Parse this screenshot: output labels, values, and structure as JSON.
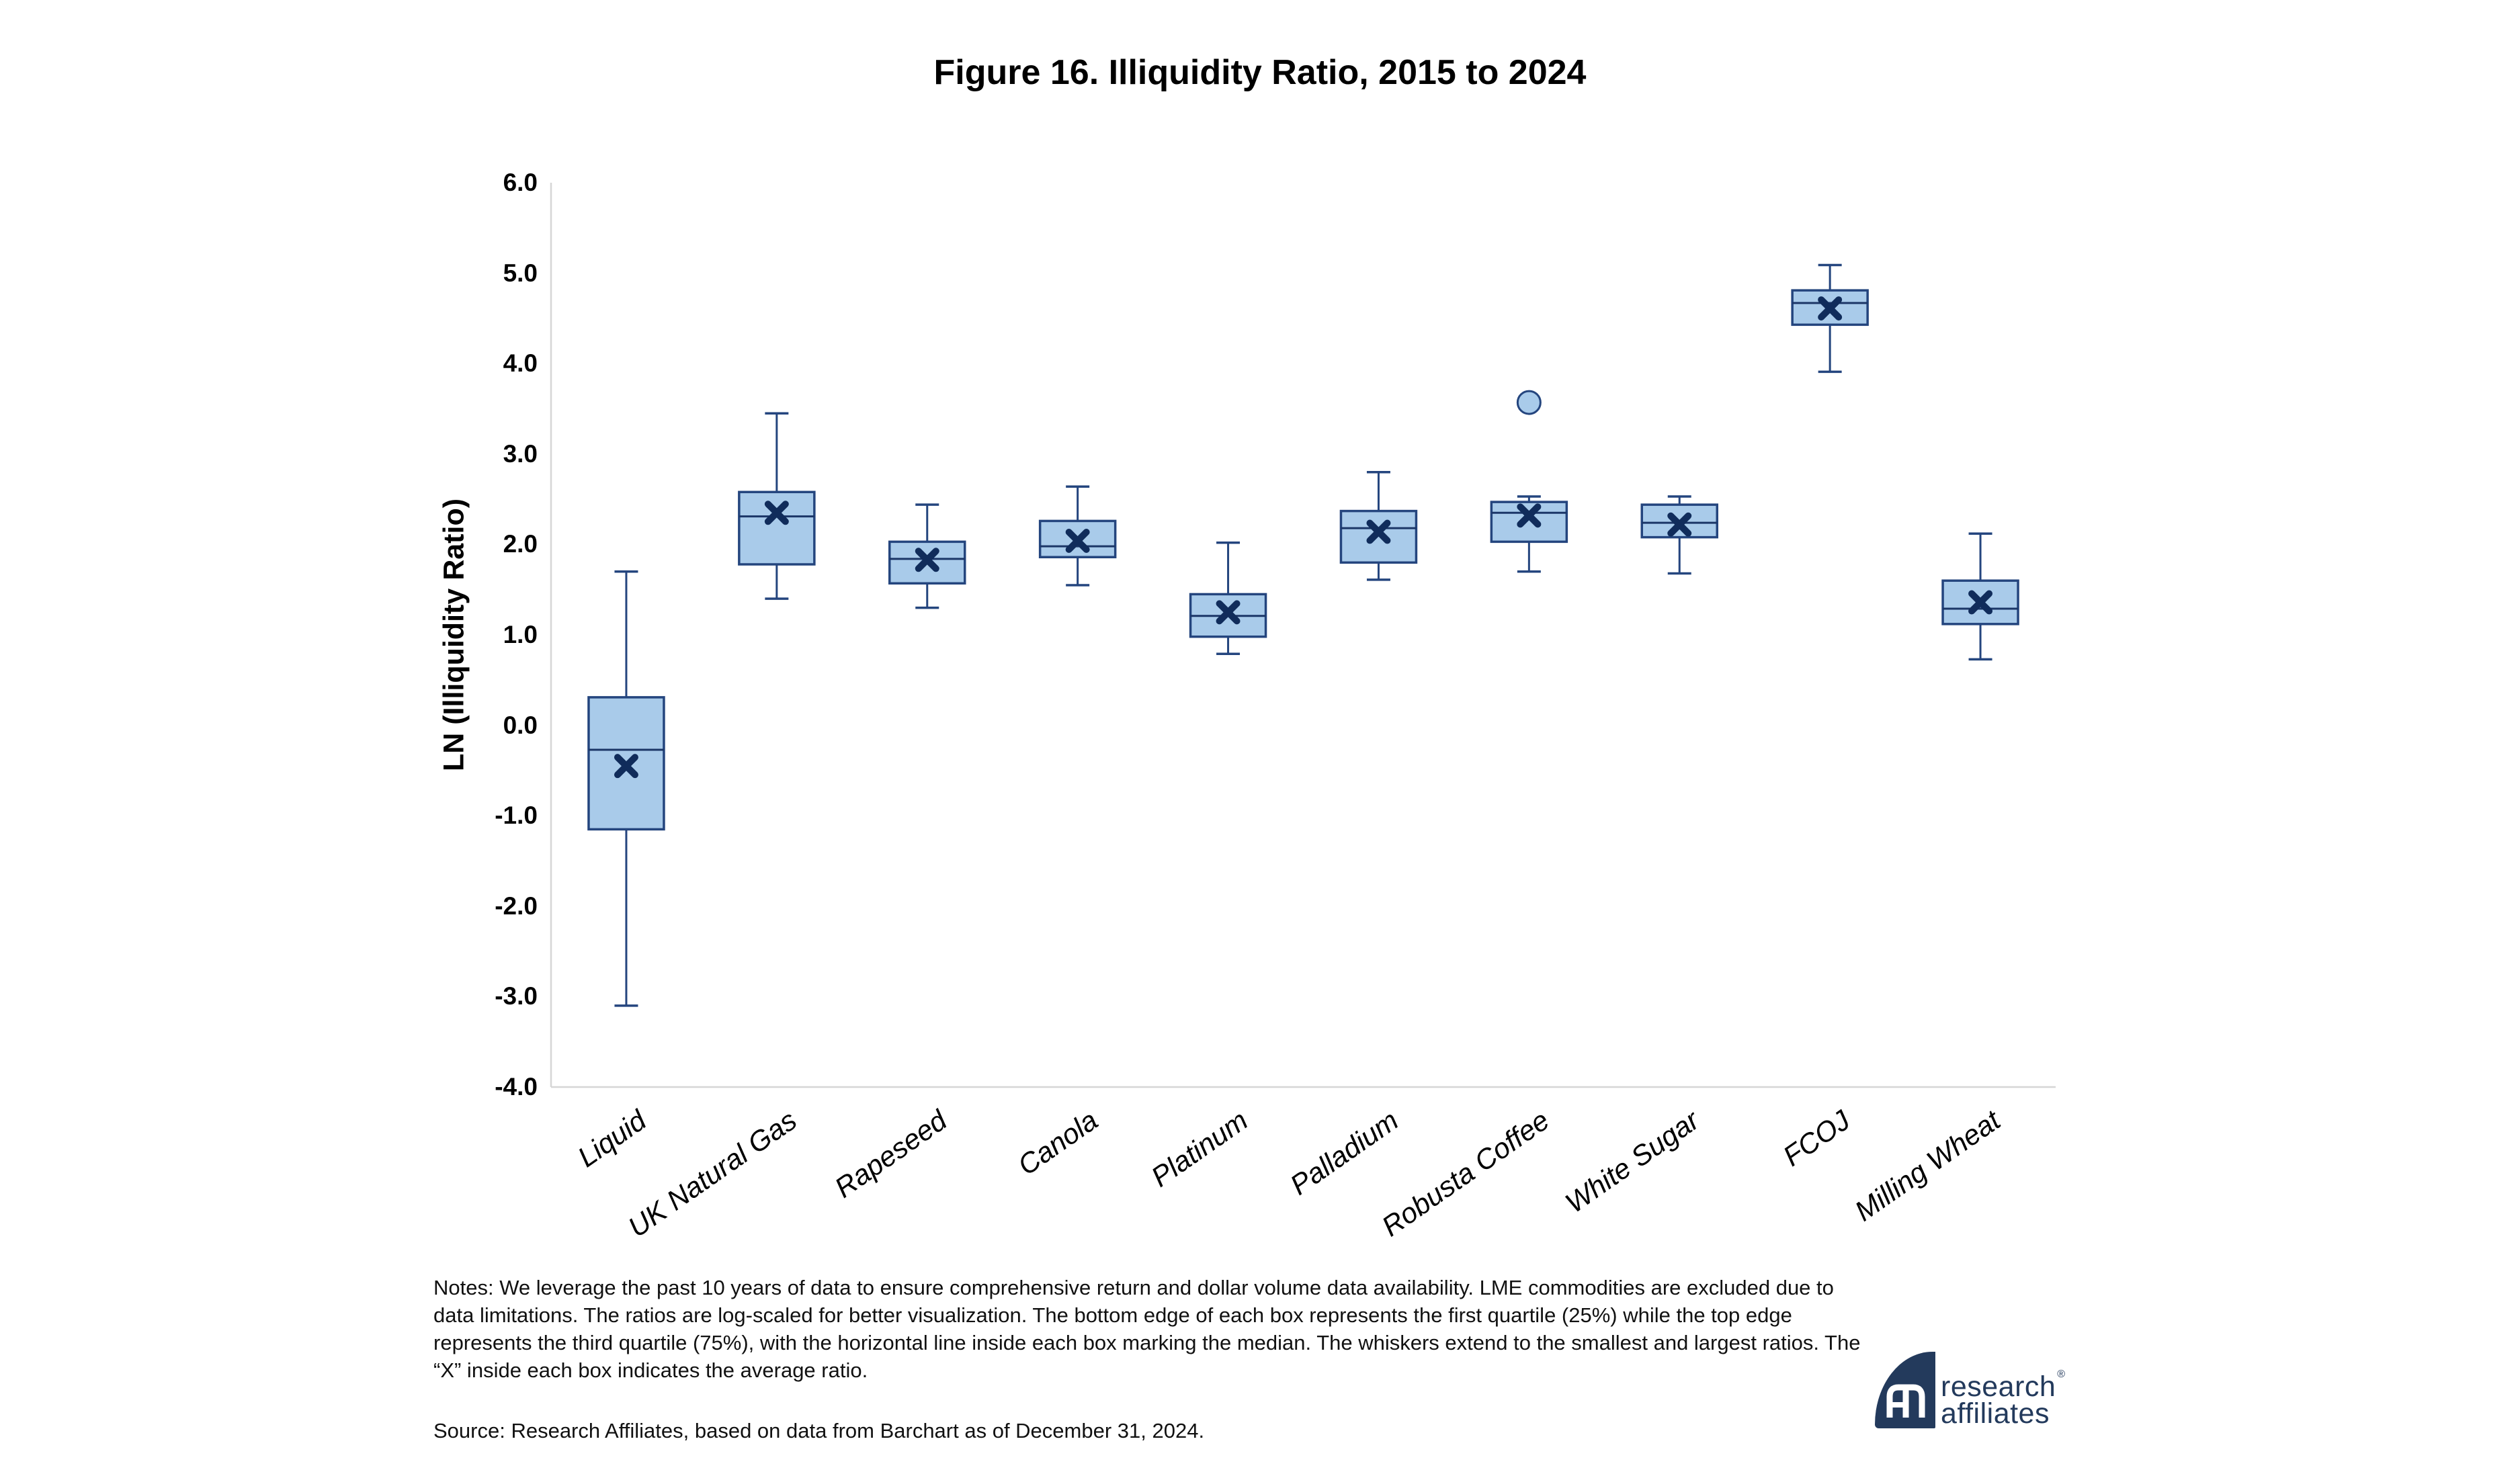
{
  "title": "Figure 16. Illiquidity Ratio, 2015 to 2024",
  "notes": "Notes: We leverage the past 10 years of data to ensure comprehensive return and dollar volume data availability. LME commodities are excluded due to data limitations. The ratios are log-scaled for better visualization. The bottom edge of each box represents the first quartile (25%) while the top edge represents the third quartile (75%), with the horizontal line inside each box marking the median. The whiskers extend to the smallest and largest ratios. The “X” inside each box indicates the average ratio.",
  "source": "Source: Research Affiliates, based on data from Barchart as of December 31, 2024.",
  "logo": {
    "line1": "research",
    "line2": "affiliates",
    "registered": "®"
  },
  "colors": {
    "box_fill": "#A9CBEA",
    "box_border": "#24457E",
    "whisker": "#24457E",
    "median": "#1B3667",
    "mean_marker": "#102C5B",
    "axis": "#D6D6D6",
    "logo_navy": "#233A5C",
    "text": "#000000"
  },
  "chart_data": {
    "type": "box",
    "title": "Figure 16. Illiquidity Ratio, 2015 to 2024",
    "xlabel": "",
    "ylabel": "LN (Illiquidity Ratio)",
    "ylim": [
      -4.0,
      6.0
    ],
    "ytick_step": 1.0,
    "grid": false,
    "legend": "none",
    "categories": [
      "Liquid",
      "UK Natural Gas",
      "Rapeseed",
      "Canola",
      "Platinum",
      "Palladium",
      "Robusta Coffee",
      "White Sugar",
      "FCOJ",
      "Milling Wheat"
    ],
    "series": [
      {
        "name": "Liquid",
        "min": -3.1,
        "q1": -1.15,
        "median": -0.27,
        "mean": -0.45,
        "q3": 0.31,
        "max": 1.7,
        "outliers": []
      },
      {
        "name": "UK Natural Gas",
        "min": 1.4,
        "q1": 1.78,
        "median": 2.31,
        "mean": 2.35,
        "q3": 2.58,
        "max": 3.45,
        "outliers": []
      },
      {
        "name": "Rapeseed",
        "min": 1.3,
        "q1": 1.57,
        "median": 1.84,
        "mean": 1.83,
        "q3": 2.03,
        "max": 2.44,
        "outliers": []
      },
      {
        "name": "Canola",
        "min": 1.55,
        "q1": 1.86,
        "median": 1.98,
        "mean": 2.04,
        "q3": 2.26,
        "max": 2.64,
        "outliers": []
      },
      {
        "name": "Platinum",
        "min": 0.79,
        "q1": 0.98,
        "median": 1.21,
        "mean": 1.25,
        "q3": 1.45,
        "max": 2.02,
        "outliers": []
      },
      {
        "name": "Palladium",
        "min": 1.61,
        "q1": 1.8,
        "median": 2.18,
        "mean": 2.14,
        "q3": 2.37,
        "max": 2.8,
        "outliers": []
      },
      {
        "name": "Robusta Coffee",
        "min": 1.7,
        "q1": 2.03,
        "median": 2.35,
        "mean": 2.32,
        "q3": 2.47,
        "max": 2.53,
        "outliers": [
          3.57
        ]
      },
      {
        "name": "White Sugar",
        "min": 1.68,
        "q1": 2.08,
        "median": 2.24,
        "mean": 2.22,
        "q3": 2.44,
        "max": 2.53,
        "outliers": []
      },
      {
        "name": "FCOJ",
        "min": 3.91,
        "q1": 4.43,
        "median": 4.67,
        "mean": 4.61,
        "q3": 4.81,
        "max": 5.09,
        "outliers": []
      },
      {
        "name": "Milling Wheat",
        "min": 0.73,
        "q1": 1.12,
        "median": 1.29,
        "mean": 1.36,
        "q3": 1.6,
        "max": 2.12,
        "outliers": []
      }
    ]
  }
}
